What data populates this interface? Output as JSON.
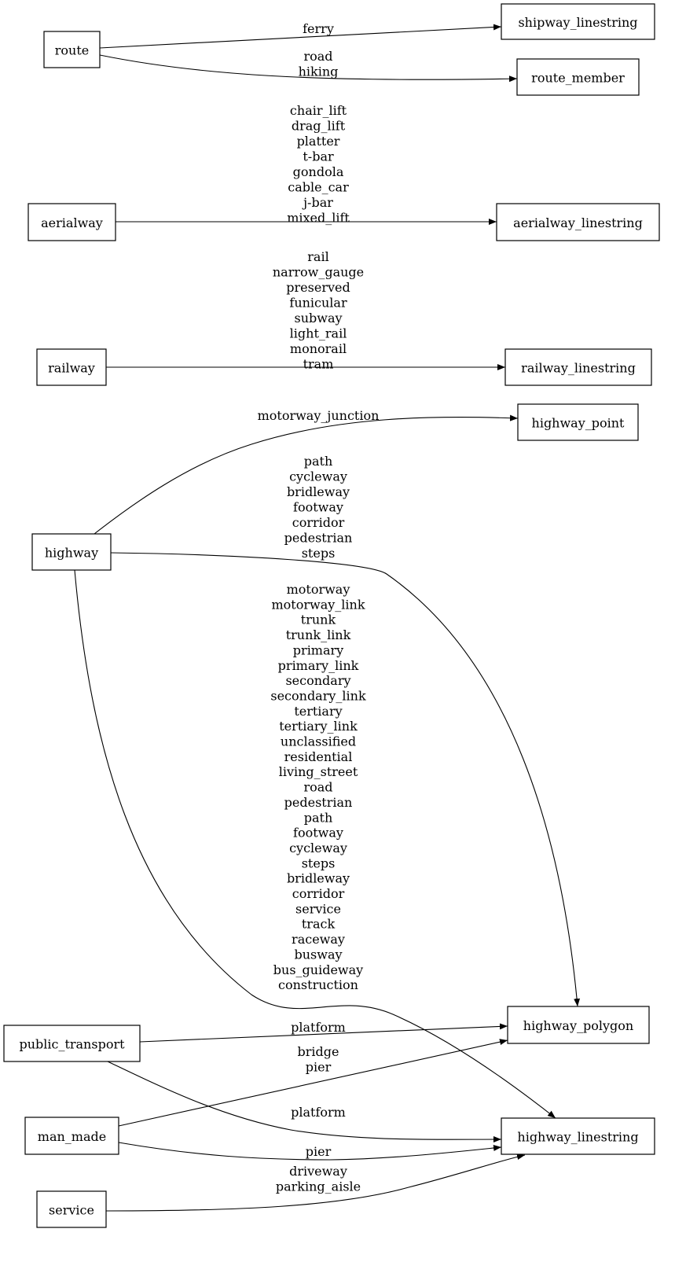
{
  "nodes": {
    "route": "route",
    "shipway_linestring": "shipway_linestring",
    "route_member": "route_member",
    "aerialway": "aerialway",
    "aerialway_linestring": "aerialway_linestring",
    "railway": "railway",
    "railway_linestring": "railway_linestring",
    "highway_point": "highway_point",
    "highway": "highway",
    "highway_polygon": "highway_polygon",
    "public_transport": "public_transport",
    "highway_linestring": "highway_linestring",
    "man_made": "man_made",
    "service": "service"
  },
  "edges": [
    {
      "from": "route",
      "to": "shipway_linestring",
      "labels": [
        "ferry"
      ]
    },
    {
      "from": "route",
      "to": "route_member",
      "labels": [
        "road",
        "hiking"
      ]
    },
    {
      "from": "aerialway",
      "to": "aerialway_linestring",
      "labels": [
        "chair_lift",
        "drag_lift",
        "platter",
        "t-bar",
        "gondola",
        "cable_car",
        "j-bar",
        "mixed_lift"
      ]
    },
    {
      "from": "railway",
      "to": "railway_linestring",
      "labels": [
        "rail",
        "narrow_gauge",
        "preserved",
        "funicular",
        "subway",
        "light_rail",
        "monorail",
        "tram"
      ]
    },
    {
      "from": "highway",
      "to": "highway_point",
      "labels": [
        "motorway_junction"
      ]
    },
    {
      "from": "highway",
      "to": "highway_polygon",
      "labels": [
        "path",
        "cycleway",
        "bridleway",
        "footway",
        "corridor",
        "pedestrian",
        "steps"
      ]
    },
    {
      "from": "highway",
      "to": "highway_linestring",
      "labels": [
        "motorway",
        "motorway_link",
        "trunk",
        "trunk_link",
        "primary",
        "primary_link",
        "secondary",
        "secondary_link",
        "tertiary",
        "tertiary_link",
        "unclassified",
        "residential",
        "living_street",
        "road",
        "pedestrian",
        "path",
        "footway",
        "cycleway",
        "steps",
        "bridleway",
        "corridor",
        "service",
        "track",
        "raceway",
        "busway",
        "bus_guideway",
        "construction"
      ]
    },
    {
      "from": "public_transport",
      "to": "highway_polygon",
      "labels": [
        "platform"
      ]
    },
    {
      "from": "man_made",
      "to": "highway_polygon",
      "labels": [
        "bridge",
        "pier"
      ]
    },
    {
      "from": "public_transport",
      "to": "highway_linestring",
      "labels": [
        "platform"
      ]
    },
    {
      "from": "man_made",
      "to": "highway_linestring",
      "labels": [
        "pier"
      ]
    },
    {
      "from": "service",
      "to": "highway_linestring",
      "labels": [
        "driveway",
        "parking_aisle"
      ]
    }
  ]
}
